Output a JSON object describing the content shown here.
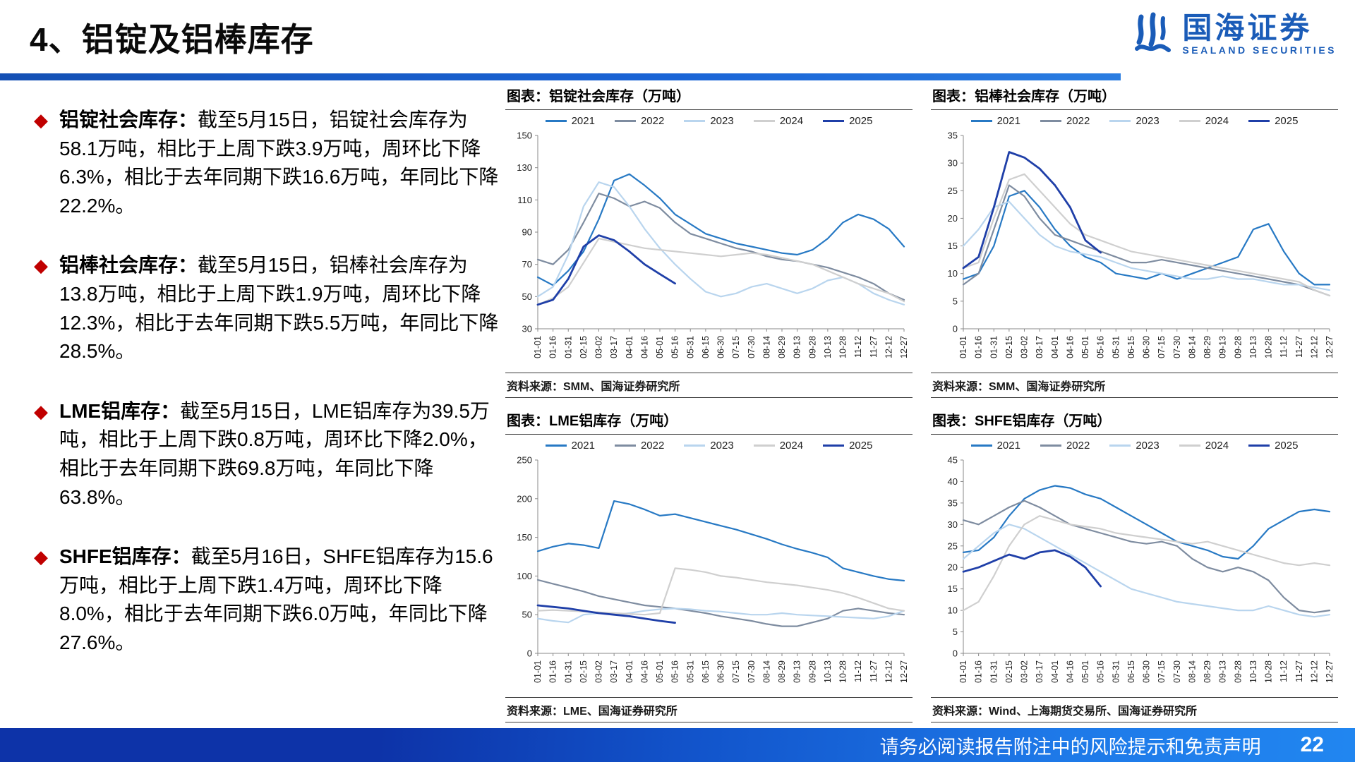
{
  "page": {
    "title": "4、铝锭及铝棒库存",
    "logo": {
      "name": "国海证券",
      "subtitle": "SEALAND SECURITIES"
    },
    "footer": {
      "disclaimer": "请务必阅读报告附注中的风险提示和免责声明",
      "page_number": "22"
    },
    "accent_colors": {
      "header_rule": "#1a64d6",
      "footer_bar": "#1255cc",
      "bullet_diamond": "#c00000",
      "logo_blue": "#1a5cb8"
    }
  },
  "bullets": [
    {
      "label": "铝锭社会库存：",
      "text": "截至5月15日，铝锭社会库存为58.1万吨，相比于上周下跌3.9万吨，周环比下降6.3%，相比于去年同期下跌16.6万吨，年同比下降22.2%。"
    },
    {
      "label": "铝棒社会库存：",
      "text": "截至5月15日，铝棒社会库存为13.8万吨，相比于上周下跌1.9万吨，周环比下降12.3%，相比于去年同期下跌5.5万吨，年同比下降28.5%。"
    },
    {
      "label": "LME铝库存：",
      "text": "截至5月15日，LME铝库存为39.5万吨，相比于上周下跌0.8万吨，周环比下降2.0%，相比于去年同期下跌69.8万吨，年同比下降63.8%。"
    },
    {
      "label": "SHFE铝库存：",
      "text": "截至5月16日，SHFE铝库存为15.6万吨，相比于上周下跌1.4万吨，周环比下降8.0%，相比于去年同期下跌6.0万吨，年同比下降27.6%。"
    }
  ],
  "chart_data": [
    {
      "type": "line",
      "title": "图表：铝锭社会库存（万吨）",
      "source": "资料来源：SMM、国海证券研究所",
      "ylim": [
        30,
        150
      ],
      "yticks": [
        30,
        50,
        70,
        90,
        110,
        130,
        150
      ],
      "legend_position": "top",
      "grid": false,
      "categories": [
        "01-01",
        "01-16",
        "01-31",
        "02-15",
        "03-02",
        "03-17",
        "04-01",
        "04-16",
        "05-01",
        "05-16",
        "05-31",
        "06-15",
        "06-30",
        "07-15",
        "07-30",
        "08-14",
        "08-29",
        "09-13",
        "09-28",
        "10-13",
        "10-28",
        "11-12",
        "11-27",
        "12-12",
        "12-27"
      ],
      "series": [
        {
          "name": "2021",
          "color": "#2779c4",
          "width": 2.2,
          "values": [
            62,
            57,
            66,
            78,
            98,
            122,
            126,
            119,
            111,
            101,
            95,
            89,
            86,
            83,
            81,
            79,
            77,
            76,
            79,
            86,
            96,
            101,
            98,
            92,
            81
          ]
        },
        {
          "name": "2022",
          "color": "#7e8ca0",
          "width": 2.2,
          "values": [
            73,
            70,
            79,
            96,
            114,
            111,
            106,
            109,
            105,
            96,
            89,
            86,
            83,
            80,
            78,
            75,
            73,
            72,
            70,
            68,
            65,
            62,
            58,
            52,
            48
          ]
        },
        {
          "name": "2023",
          "color": "#b9d5ee",
          "width": 2.2,
          "values": [
            50,
            56,
            76,
            106,
            121,
            118,
            106,
            92,
            80,
            70,
            61,
            53,
            50,
            52,
            56,
            58,
            55,
            52,
            55,
            60,
            62,
            58,
            52,
            48,
            45
          ]
        },
        {
          "name": "2024",
          "color": "#cfcfcf",
          "width": 2.2,
          "values": [
            45,
            49,
            56,
            71,
            86,
            84,
            82,
            80,
            79,
            78,
            77,
            76,
            75,
            76,
            77,
            76,
            74,
            72,
            70,
            66,
            62,
            58,
            55,
            52,
            47
          ]
        },
        {
          "name": "2025",
          "color": "#1f3fa8",
          "width": 2.8,
          "values": [
            45,
            48,
            61,
            81,
            88,
            85,
            78,
            70,
            64,
            58.1
          ]
        }
      ]
    },
    {
      "type": "line",
      "title": "图表：铝棒社会库存（万吨）",
      "source": "资料来源：SMM、国海证券研究所",
      "ylim": [
        0,
        35
      ],
      "yticks": [
        0,
        5,
        10,
        15,
        20,
        25,
        30,
        35
      ],
      "legend_position": "top",
      "grid": false,
      "categories": [
        "01-01",
        "01-16",
        "01-31",
        "02-15",
        "03-02",
        "03-17",
        "04-01",
        "04-16",
        "05-01",
        "05-16",
        "05-31",
        "06-15",
        "06-30",
        "07-15",
        "07-30",
        "08-14",
        "08-29",
        "09-13",
        "09-28",
        "10-13",
        "10-28",
        "11-12",
        "11-27",
        "12-12",
        "12-27"
      ],
      "series": [
        {
          "name": "2021",
          "color": "#2779c4",
          "width": 2.2,
          "values": [
            9,
            10,
            15,
            24,
            25,
            22,
            18,
            15,
            13,
            12,
            10,
            9.5,
            9,
            10,
            9,
            10,
            11,
            12,
            13,
            18,
            19,
            14,
            10,
            8,
            8
          ]
        },
        {
          "name": "2022",
          "color": "#7e8ca0",
          "width": 2.2,
          "values": [
            8,
            10,
            18,
            26,
            24,
            20,
            17,
            16,
            15,
            14,
            13,
            12,
            12,
            12.5,
            12,
            11.5,
            11,
            10.5,
            10,
            9.5,
            9,
            8.5,
            8,
            7,
            6
          ]
        },
        {
          "name": "2023",
          "color": "#b9d5ee",
          "width": 2.2,
          "values": [
            15,
            18,
            22,
            23,
            20,
            17,
            15,
            14,
            13.5,
            13,
            12,
            11,
            10.5,
            10,
            9.5,
            9,
            9,
            9.5,
            9,
            9,
            8.5,
            8,
            8,
            7.5,
            7
          ]
        },
        {
          "name": "2024",
          "color": "#cfcfcf",
          "width": 2.2,
          "values": [
            11,
            12,
            20,
            27,
            28,
            25,
            22,
            19,
            17,
            16,
            15,
            14,
            13.5,
            13,
            12.5,
            12,
            11.5,
            11,
            10.5,
            10,
            9.5,
            9,
            8.5,
            7,
            6
          ]
        },
        {
          "name": "2025",
          "color": "#1f3fa8",
          "width": 2.8,
          "values": [
            11,
            13,
            22,
            32,
            31,
            29,
            26,
            22,
            16,
            13.8
          ]
        }
      ]
    },
    {
      "type": "line",
      "title": "图表：LME铝库存（万吨）",
      "source": "资料来源：LME、国海证券研究所",
      "ylim": [
        0,
        250
      ],
      "yticks": [
        0,
        50,
        100,
        150,
        200,
        250
      ],
      "legend_position": "top",
      "grid": false,
      "categories": [
        "01-01",
        "01-16",
        "01-31",
        "02-15",
        "03-02",
        "03-17",
        "04-01",
        "04-16",
        "05-01",
        "05-16",
        "05-31",
        "06-15",
        "06-30",
        "07-15",
        "07-30",
        "08-14",
        "08-29",
        "09-13",
        "09-28",
        "10-13",
        "10-28",
        "11-12",
        "11-27",
        "12-12",
        "12-27"
      ],
      "series": [
        {
          "name": "2021",
          "color": "#2779c4",
          "width": 2.2,
          "values": [
            132,
            138,
            142,
            140,
            136,
            197,
            193,
            186,
            178,
            180,
            175,
            170,
            165,
            160,
            154,
            148,
            141,
            135,
            130,
            124,
            110,
            105,
            100,
            96,
            94
          ]
        },
        {
          "name": "2022",
          "color": "#7e8ca0",
          "width": 2.2,
          "values": [
            95,
            90,
            85,
            80,
            74,
            70,
            66,
            62,
            60,
            58,
            55,
            52,
            48,
            45,
            42,
            38,
            35,
            35,
            40,
            45,
            55,
            58,
            55,
            52,
            50
          ]
        },
        {
          "name": "2023",
          "color": "#b9d5ee",
          "width": 2.2,
          "values": [
            45,
            42,
            40,
            50,
            52,
            50,
            52,
            55,
            57,
            58,
            57,
            55,
            54,
            52,
            50,
            50,
            52,
            50,
            49,
            48,
            47,
            46,
            45,
            48,
            55
          ]
        },
        {
          "name": "2024",
          "color": "#cfcfcf",
          "width": 2.2,
          "values": [
            55,
            56,
            55,
            54,
            53,
            52,
            51,
            50,
            52,
            110,
            108,
            105,
            100,
            98,
            95,
            92,
            90,
            88,
            85,
            82,
            78,
            72,
            65,
            58,
            55
          ]
        },
        {
          "name": "2025",
          "color": "#1f3fa8",
          "width": 2.8,
          "values": [
            62,
            60,
            58,
            55,
            52,
            50,
            48,
            45,
            42,
            39.5
          ]
        }
      ]
    },
    {
      "type": "line",
      "title": "图表：SHFE铝库存（万吨）",
      "source": "资料来源：Wind、上海期货交易所、国海证券研究所",
      "ylim": [
        0,
        45
      ],
      "yticks": [
        0,
        5,
        10,
        15,
        20,
        25,
        30,
        35,
        40,
        45
      ],
      "legend_position": "top",
      "grid": false,
      "categories": [
        "01-01",
        "01-16",
        "01-31",
        "02-15",
        "03-02",
        "03-17",
        "04-01",
        "04-16",
        "05-01",
        "05-16",
        "05-31",
        "06-15",
        "06-30",
        "07-15",
        "07-30",
        "08-14",
        "08-29",
        "09-13",
        "09-28",
        "10-13",
        "10-28",
        "11-12",
        "11-27",
        "12-12",
        "12-27"
      ],
      "series": [
        {
          "name": "2021",
          "color": "#2779c4",
          "width": 2.2,
          "values": [
            23.5,
            24,
            27,
            32,
            36,
            38,
            39,
            38.5,
            37,
            36,
            34,
            32,
            30,
            28,
            26,
            25,
            24,
            22.5,
            22,
            25,
            29,
            31,
            33,
            33.5,
            33
          ]
        },
        {
          "name": "2022",
          "color": "#7e8ca0",
          "width": 2.2,
          "values": [
            31,
            30,
            32,
            34,
            35.5,
            34,
            32,
            30,
            29,
            28,
            27,
            26,
            25.5,
            26,
            25,
            22,
            20,
            19,
            20,
            19,
            17,
            13,
            10,
            9.5,
            10
          ]
        },
        {
          "name": "2023",
          "color": "#b9d5ee",
          "width": 2.2,
          "values": [
            22,
            25,
            28,
            30,
            29,
            27,
            25,
            23,
            21,
            19,
            17,
            15,
            14,
            13,
            12,
            11.5,
            11,
            10.5,
            10,
            10,
            11,
            10,
            9,
            8.5,
            9
          ]
        },
        {
          "name": "2024",
          "color": "#cfcfcf",
          "width": 2.2,
          "values": [
            10,
            12,
            18,
            25,
            30,
            32,
            31,
            30,
            29.5,
            29,
            28,
            27.5,
            27,
            26.5,
            26,
            25.5,
            26,
            25,
            24,
            23,
            22,
            21,
            20.5,
            21,
            20.5
          ]
        },
        {
          "name": "2025",
          "color": "#1f3fa8",
          "width": 2.8,
          "values": [
            19,
            20,
            21.5,
            23,
            22,
            23.5,
            24,
            22.5,
            20,
            15.6
          ]
        }
      ]
    }
  ]
}
